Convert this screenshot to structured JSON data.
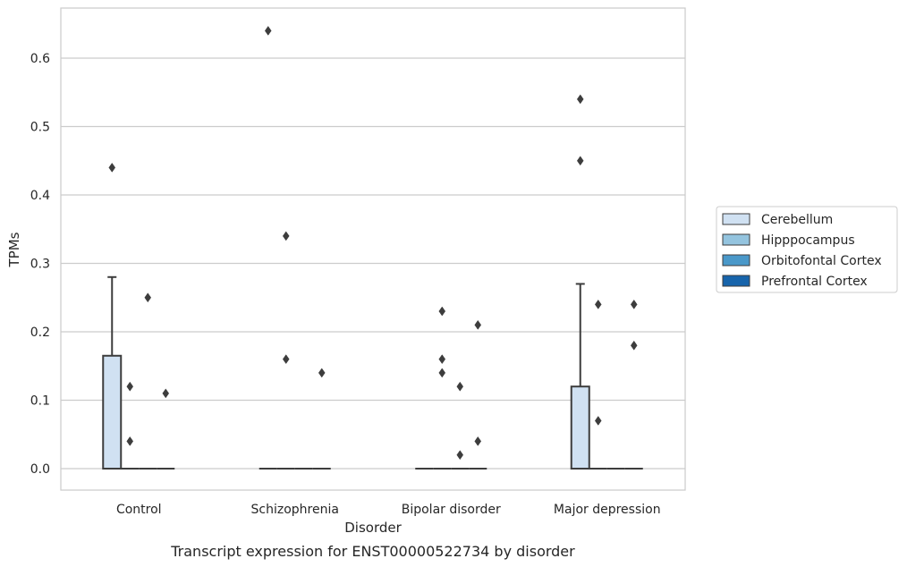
{
  "chart_data": {
    "type": "box",
    "title": "",
    "caption": "Transcript expression for ENST00000522734 by disorder",
    "xlabel": "Disorder",
    "ylabel": "TPMs",
    "ylim": [
      -0.032,
      0.675
    ],
    "yticks": [
      0.0,
      0.1,
      0.2,
      0.3,
      0.4,
      0.5,
      0.6
    ],
    "grid": "horizontal",
    "legend_position": "right",
    "categories": [
      "Control",
      "Schizophrenia",
      "Bipolar disorder",
      "Major depression"
    ],
    "series": [
      {
        "name": "Cerebellum",
        "color": "#d0e1f2",
        "boxes": [
          {
            "q1": 0.0,
            "median": 0.0,
            "q3": 0.165,
            "whisker_low": 0.0,
            "whisker_high": 0.28,
            "outliers": [
              0.44
            ]
          },
          {
            "q1": 0.0,
            "median": 0.0,
            "q3": 0.0,
            "whisker_low": 0.0,
            "whisker_high": 0.0,
            "outliers": [
              0.64
            ]
          },
          {
            "q1": 0.0,
            "median": 0.0,
            "q3": 0.0,
            "whisker_low": 0.0,
            "whisker_high": 0.0,
            "outliers": []
          },
          {
            "q1": 0.0,
            "median": 0.0,
            "q3": 0.12,
            "whisker_low": 0.0,
            "whisker_high": 0.27,
            "outliers": [
              0.54,
              0.45
            ]
          }
        ]
      },
      {
        "name": "Hipppocampus",
        "color": "#94c4df",
        "boxes": [
          {
            "q1": 0.0,
            "median": 0.0,
            "q3": 0.0,
            "whisker_low": 0.0,
            "whisker_high": 0.0,
            "outliers": [
              0.12,
              0.04
            ]
          },
          {
            "q1": 0.0,
            "median": 0.0,
            "q3": 0.0,
            "whisker_low": 0.0,
            "whisker_high": 0.0,
            "outliers": [
              0.34,
              0.16
            ]
          },
          {
            "q1": 0.0,
            "median": 0.0,
            "q3": 0.0,
            "whisker_low": 0.0,
            "whisker_high": 0.0,
            "outliers": [
              0.23,
              0.16,
              0.14
            ]
          },
          {
            "q1": 0.0,
            "median": 0.0,
            "q3": 0.0,
            "whisker_low": 0.0,
            "whisker_high": 0.0,
            "outliers": [
              0.24,
              0.07
            ]
          }
        ]
      },
      {
        "name": "Orbitofontal Cortex",
        "color": "#4a98c9",
        "boxes": [
          {
            "q1": 0.0,
            "median": 0.0,
            "q3": 0.0,
            "whisker_low": 0.0,
            "whisker_high": 0.0,
            "outliers": [
              0.25
            ]
          },
          {
            "q1": 0.0,
            "median": 0.0,
            "q3": 0.0,
            "whisker_low": 0.0,
            "whisker_high": 0.0,
            "outliers": []
          },
          {
            "q1": 0.0,
            "median": 0.0,
            "q3": 0.0,
            "whisker_low": 0.0,
            "whisker_high": 0.0,
            "outliers": [
              0.12,
              0.02
            ]
          },
          {
            "q1": 0.0,
            "median": 0.0,
            "q3": 0.0,
            "whisker_low": 0.0,
            "whisker_high": 0.0,
            "outliers": []
          }
        ]
      },
      {
        "name": "Prefrontal Cortex",
        "color": "#1764ab",
        "boxes": [
          {
            "q1": 0.0,
            "median": 0.0,
            "q3": 0.0,
            "whisker_low": 0.0,
            "whisker_high": 0.0,
            "outliers": [
              0.11
            ]
          },
          {
            "q1": 0.0,
            "median": 0.0,
            "q3": 0.0,
            "whisker_low": 0.0,
            "whisker_high": 0.0,
            "outliers": [
              0.14
            ]
          },
          {
            "q1": 0.0,
            "median": 0.0,
            "q3": 0.0,
            "whisker_low": 0.0,
            "whisker_high": 0.0,
            "outliers": [
              0.21,
              0.04
            ]
          },
          {
            "q1": 0.0,
            "median": 0.0,
            "q3": 0.0,
            "whisker_low": 0.0,
            "whisker_high": 0.0,
            "outliers": [
              0.24,
              0.18
            ]
          }
        ]
      }
    ]
  }
}
